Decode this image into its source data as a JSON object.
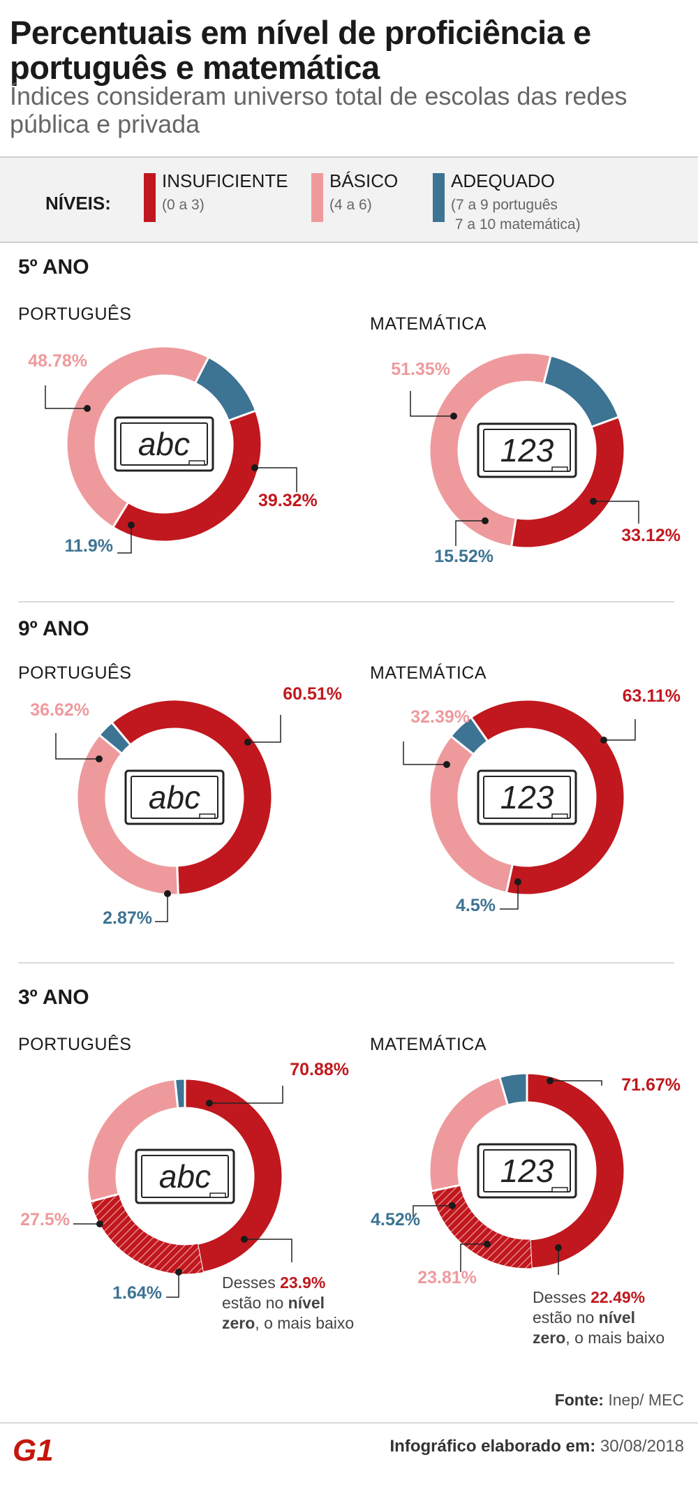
{
  "title": "Percentuais em nível de proficiência e português e matemática",
  "subtitle": "Índices consideram universo total de escolas das redes pública e privada",
  "legend": {
    "title": "NÍVEIS:",
    "items": [
      {
        "name": "INSUFICIENTE",
        "desc": "(0 a 3)",
        "color": "#c0181e"
      },
      {
        "name": "BÁSICO",
        "desc": "(4 a 6)",
        "color": "#ee9a9c"
      },
      {
        "name": "ADEQUADO",
        "desc": "(7 a 9 português\n 7 a 10 matemática)",
        "color": "#3d7393"
      }
    ]
  },
  "colors": {
    "insuficiente": "#c0181e",
    "basico": "#ee9a9c",
    "adequado": "#3d7393"
  },
  "icons": {
    "portugues": "chalkboard-abc-icon",
    "matematica": "chalkboard-123-icon"
  },
  "board_text": {
    "portugues": "abc",
    "matematica": "123"
  },
  "sections": [
    {
      "title": "5º ANO"
    },
    {
      "title": "9º ANO"
    },
    {
      "title": "3º ANO"
    }
  ],
  "chart_data": [
    {
      "type": "pie",
      "section": "5º ANO",
      "title": "PORTUGUÊS",
      "categories": [
        "INSUFICIENTE",
        "BÁSICO",
        "ADEQUADO"
      ],
      "values": [
        39.32,
        48.78,
        11.9
      ],
      "labels": [
        "39.32%",
        "48.78%",
        "11.9%"
      ]
    },
    {
      "type": "pie",
      "section": "5º ANO",
      "title": "MATEMÁTICA",
      "categories": [
        "INSUFICIENTE",
        "BÁSICO",
        "ADEQUADO"
      ],
      "values": [
        33.12,
        51.35,
        15.52
      ],
      "labels": [
        "33.12%",
        "51.35%",
        "15.52%"
      ]
    },
    {
      "type": "pie",
      "section": "9º ANO",
      "title": "PORTUGUÊS",
      "categories": [
        "INSUFICIENTE",
        "BÁSICO",
        "ADEQUADO"
      ],
      "values": [
        60.51,
        36.62,
        2.87
      ],
      "labels": [
        "60.51%",
        "36.62%",
        "2.87%"
      ]
    },
    {
      "type": "pie",
      "section": "9º ANO",
      "title": "MATEMÁTICA",
      "categories": [
        "INSUFICIENTE",
        "BÁSICO",
        "ADEQUADO"
      ],
      "values": [
        63.11,
        32.39,
        4.5
      ],
      "labels": [
        "63.11%",
        "32.39%",
        "4.5%"
      ]
    },
    {
      "type": "pie",
      "section": "3º ANO",
      "title": "PORTUGUÊS",
      "categories": [
        "INSUFICIENTE",
        "BÁSICO",
        "ADEQUADO"
      ],
      "values": [
        70.88,
        27.5,
        1.64
      ],
      "labels": [
        "70.88%",
        "27.5%",
        "1.64%"
      ],
      "nivel_zero": {
        "value": 23.9,
        "label": "23.9%",
        "text": [
          "Desses ",
          "23.9%",
          "estão no ",
          "nível",
          "zero",
          ", o mais baixo"
        ]
      }
    },
    {
      "type": "pie",
      "section": "3º ANO",
      "title": "MATEMÁTICA",
      "categories": [
        "INSUFICIENTE",
        "BÁSICO",
        "ADEQUADO"
      ],
      "values": [
        71.67,
        23.81,
        4.52
      ],
      "labels": [
        "71.67%",
        "23.81%",
        "4.52%"
      ],
      "nivel_zero": {
        "value": 22.49,
        "label": "22.49%",
        "text": [
          "Desses ",
          "22.49%",
          "estão no ",
          "nível",
          "zero",
          ", o mais baixo"
        ]
      }
    }
  ],
  "footer": {
    "source_label": "Fonte:",
    "source": "Inep/ MEC",
    "made_label": "Infográfico elaborado em:",
    "date": "30/08/2018",
    "logo": "G1"
  }
}
